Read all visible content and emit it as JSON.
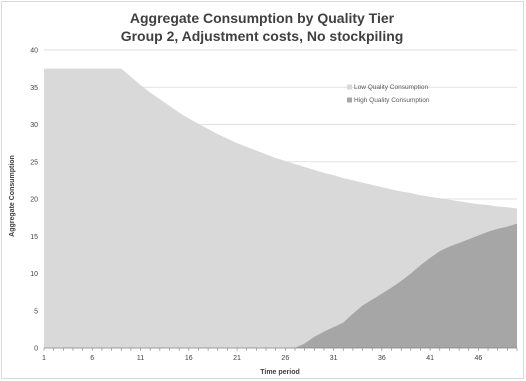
{
  "chart_data": {
    "type": "area",
    "title": "Aggregate Consumption by Quality Tier",
    "subtitle": "Group 2, Adjustment costs, No stockpiling",
    "xlabel": "Time period",
    "ylabel": "Aggregate Consumption",
    "x_tick_labels": [
      "1",
      "6",
      "11",
      "16",
      "21",
      "26",
      "31",
      "36",
      "41",
      "46"
    ],
    "xlim": [
      1,
      50
    ],
    "ylim": [
      0,
      40
    ],
    "y_ticks": [
      0,
      5,
      10,
      15,
      20,
      25,
      30,
      35,
      40
    ],
    "grid": "horizontal",
    "legend_position": "upper-right",
    "x": [
      1,
      2,
      3,
      4,
      5,
      6,
      7,
      8,
      9,
      10,
      11,
      12,
      13,
      14,
      15,
      16,
      17,
      18,
      19,
      20,
      21,
      22,
      23,
      24,
      25,
      26,
      27,
      28,
      29,
      30,
      31,
      32,
      33,
      34,
      35,
      36,
      37,
      38,
      39,
      40,
      41,
      42,
      43,
      44,
      45,
      46,
      47,
      48,
      49,
      50
    ],
    "series": [
      {
        "name": "Low Quality Consumption",
        "color": "#d9d9d9",
        "values": [
          37.5,
          37.5,
          37.5,
          37.5,
          37.5,
          37.5,
          37.5,
          37.5,
          37.5,
          36.4,
          35.3,
          34.3,
          33.4,
          32.5,
          31.6,
          30.8,
          30.1,
          29.4,
          28.7,
          28.1,
          27.5,
          27.0,
          26.5,
          26.0,
          25.5,
          25.1,
          24.7,
          24.3,
          23.9,
          23.5,
          23.2,
          22.8,
          22.5,
          22.2,
          21.9,
          21.6,
          21.3,
          21.0,
          20.8,
          20.5,
          20.3,
          20.1,
          19.9,
          19.7,
          19.5,
          19.3,
          19.2,
          19.0,
          18.9,
          18.7
        ]
      },
      {
        "name": "High Quality Consumption",
        "color": "#a6a6a6",
        "values": [
          0,
          0,
          0,
          0,
          0,
          0,
          0,
          0,
          0,
          0,
          0,
          0,
          0,
          0,
          0,
          0,
          0,
          0,
          0,
          0,
          0,
          0,
          0,
          0,
          0,
          0,
          0,
          0.6,
          1.5,
          2.2,
          2.8,
          3.4,
          4.6,
          5.7,
          6.5,
          7.3,
          8.1,
          9.0,
          10.0,
          11.1,
          12.1,
          13.0,
          13.6,
          14.1,
          14.6,
          15.1,
          15.6,
          16.0,
          16.3,
          16.7
        ]
      }
    ]
  }
}
